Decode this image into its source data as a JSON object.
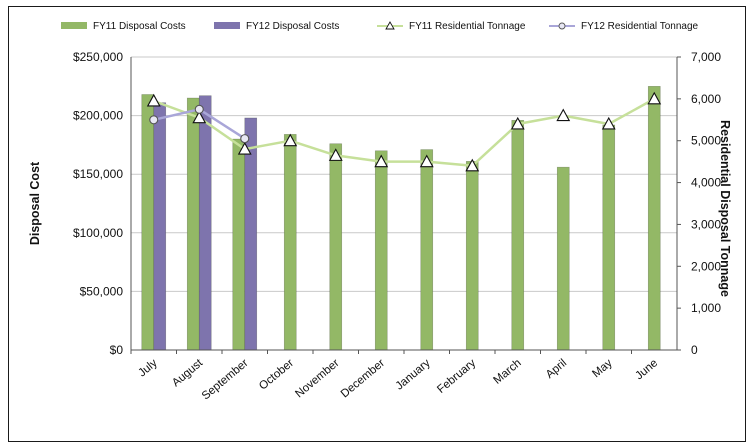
{
  "chart_data": {
    "type": "bar",
    "title": "",
    "categories": [
      "July",
      "August",
      "September",
      "October",
      "November",
      "December",
      "January",
      "February",
      "March",
      "April",
      "May",
      "June"
    ],
    "bar_series": [
      {
        "name": "FY11 Disposal Costs",
        "color": "#93b866",
        "values": [
          218000,
          215000,
          180000,
          184000,
          176000,
          170000,
          171000,
          161000,
          196000,
          156000,
          192000,
          225000
        ]
      },
      {
        "name": "FY12 Disposal Costs",
        "color": "#7e74ad",
        "values": [
          211000,
          217000,
          198000,
          null,
          null,
          null,
          null,
          null,
          null,
          null,
          null,
          null
        ]
      }
    ],
    "line_series": [
      {
        "name": "FY11 Residential Tonnage",
        "color": "#c6e09a",
        "marker": "triangle",
        "values": [
          5950,
          5550,
          4800,
          5000,
          4650,
          4500,
          4500,
          4400,
          5400,
          5600,
          5400,
          6000
        ]
      },
      {
        "name": "FY12 Residential Tonnage",
        "color": "#a9a6d8",
        "marker": "circle",
        "values": [
          5500,
          5750,
          5050,
          null,
          null,
          null,
          null,
          null,
          null,
          null,
          null,
          null
        ]
      }
    ],
    "ylabel": "Disposal Cost",
    "y2label": "Residential Disposal Tonnage",
    "ylim": [
      0,
      250000
    ],
    "y2lim": [
      0,
      7000
    ],
    "y_ticks": [
      "$0",
      "$50,000",
      "$100,000",
      "$150,000",
      "$200,000",
      "$250,000"
    ],
    "y2_ticks": [
      "0",
      "1,000",
      "2,000",
      "3,000",
      "4,000",
      "5,000",
      "6,000",
      "7,000"
    ],
    "grid": true,
    "legend_position": "top"
  }
}
